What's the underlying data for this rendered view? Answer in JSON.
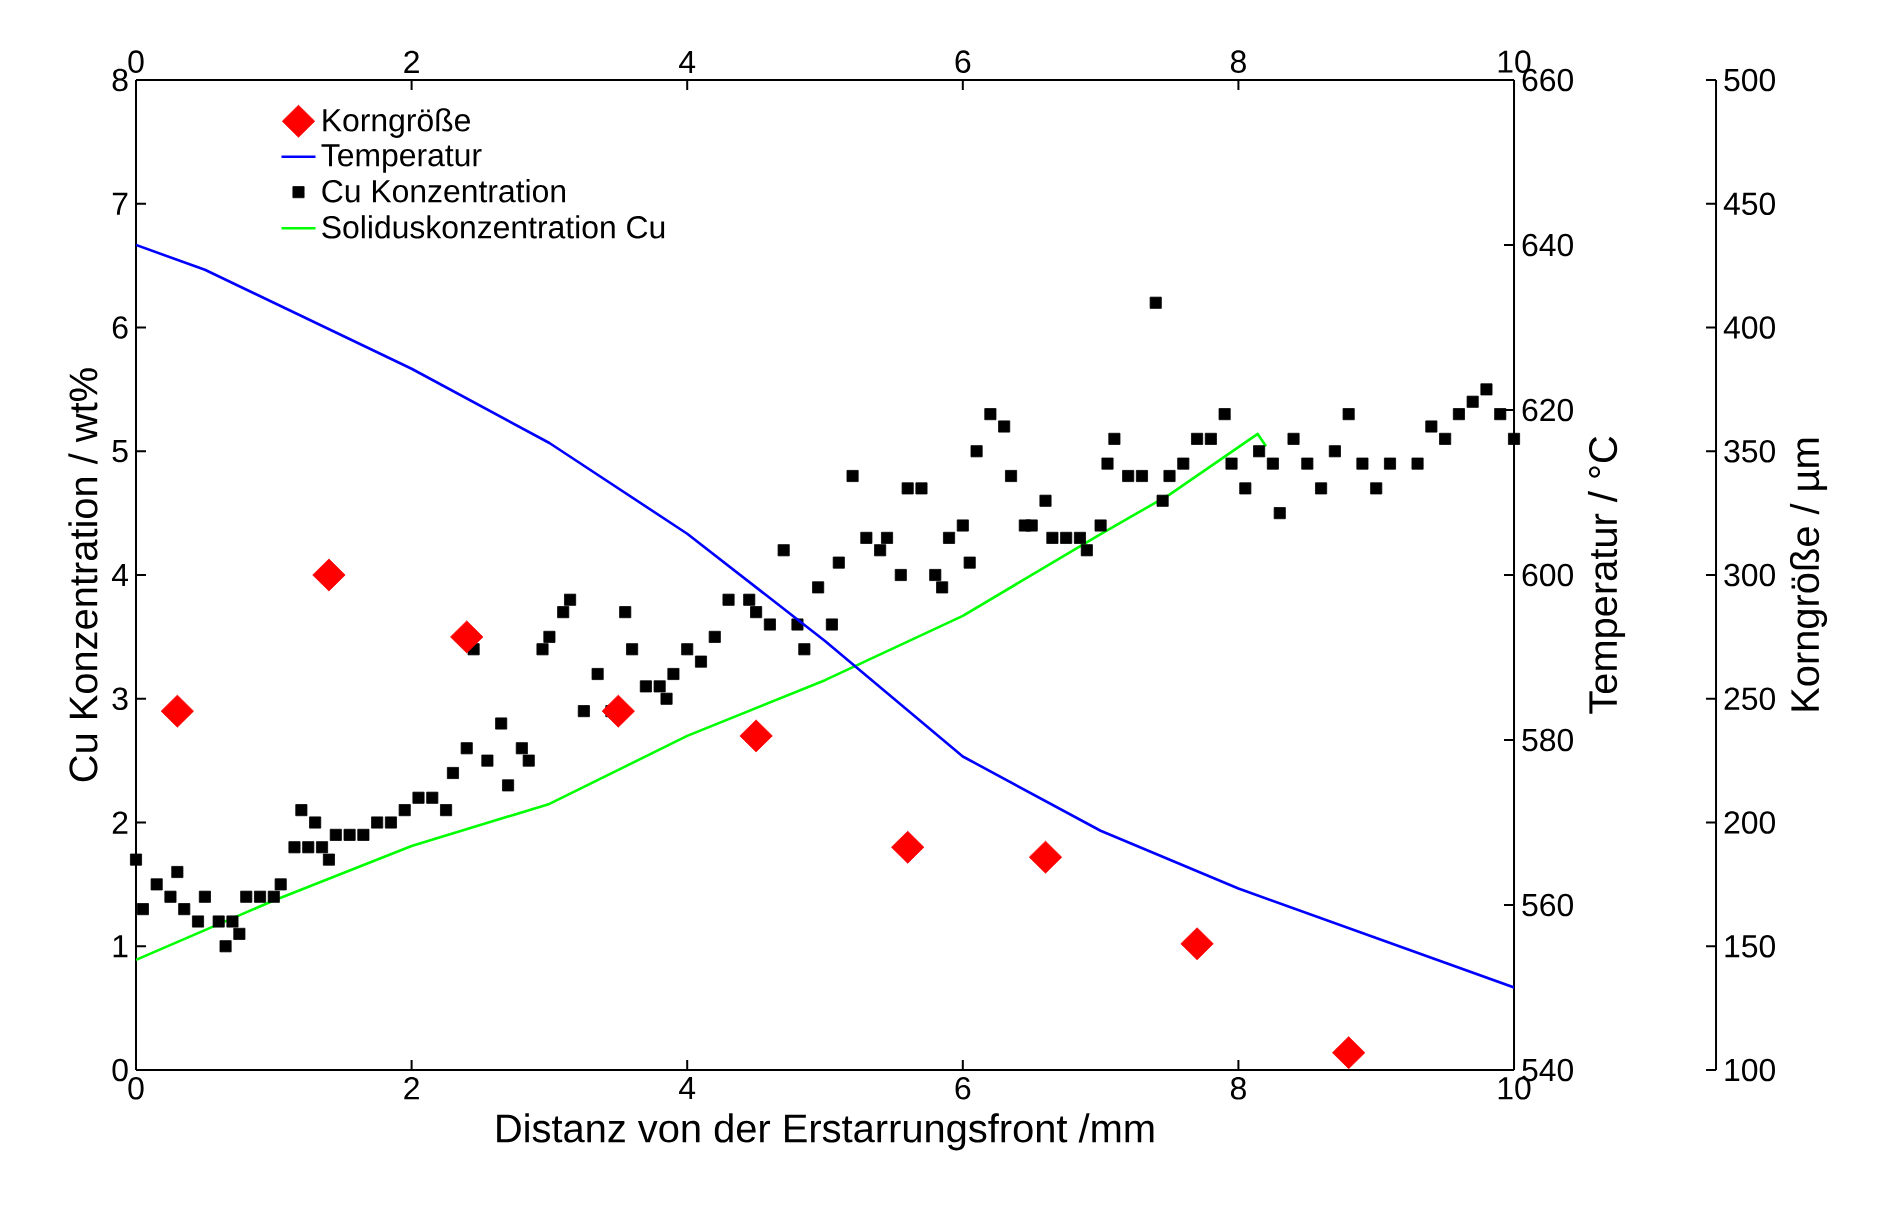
{
  "chart_data": {
    "type": "scatter",
    "xlabel": "Distanz von der Erstarrungsfront /mm",
    "ylabel": "Cu Konzentration / wt%",
    "y2label": "Temperatur / °C",
    "y3label": "Korngröße / µm",
    "xlim": [
      0,
      10
    ],
    "xticks": [
      0,
      2,
      4,
      6,
      8,
      10
    ],
    "x2lim": [
      0,
      10
    ],
    "x2ticks": [
      0,
      2,
      4,
      6,
      8,
      10
    ],
    "ylim": [
      0,
      8
    ],
    "yticks": [
      0,
      1,
      2,
      3,
      4,
      5,
      6,
      7,
      8
    ],
    "y2lim": [
      540,
      660
    ],
    "y2ticks": [
      540,
      560,
      580,
      600,
      620,
      640,
      660
    ],
    "y3lim": [
      100,
      500
    ],
    "y3ticks": [
      100,
      150,
      200,
      250,
      300,
      350,
      400,
      450,
      500
    ],
    "legend": "top left",
    "grid": false,
    "series": [
      {
        "name": "Korngröße",
        "marker": "diamond",
        "axis": "y3",
        "color": "#ff0000",
        "x": [
          0.3,
          1.4,
          2.4,
          3.5,
          4.5,
          5.6,
          6.6,
          7.7,
          8.8
        ],
        "values": [
          245,
          300,
          275,
          245,
          235,
          190,
          186,
          151,
          107
        ]
      },
      {
        "name": "Temperatur",
        "type": "line",
        "marker": "none",
        "axis": "y2",
        "color": "#0000ff",
        "x": [
          0,
          0.5,
          1,
          2,
          3,
          4,
          5,
          6,
          7,
          8,
          9,
          10
        ],
        "values": [
          640,
          637,
          633,
          625,
          616,
          605,
          592,
          578,
          569,
          562,
          556,
          550
        ]
      },
      {
        "name": "Cu Konzentration",
        "marker": "square",
        "axis": "y",
        "color": "#000000",
        "x": [
          0.0,
          0.05,
          0.15,
          0.25,
          0.3,
          0.35,
          0.45,
          0.5,
          0.6,
          0.65,
          0.7,
          0.75,
          0.8,
          0.9,
          1.0,
          1.05,
          1.15,
          1.2,
          1.25,
          1.3,
          1.35,
          1.4,
          1.45,
          1.55,
          1.65,
          1.75,
          1.85,
          1.95,
          2.05,
          2.15,
          2.25,
          2.3,
          2.4,
          2.45,
          2.55,
          2.65,
          2.7,
          2.8,
          2.85,
          2.95,
          3.0,
          3.1,
          3.15,
          3.25,
          3.35,
          3.45,
          3.55,
          3.6,
          3.7,
          3.8,
          3.85,
          3.9,
          4.0,
          4.1,
          4.2,
          4.3,
          4.45,
          4.5,
          4.6,
          4.7,
          4.8,
          4.85,
          4.95,
          5.05,
          5.1,
          5.2,
          5.3,
          5.4,
          5.45,
          5.55,
          5.6,
          5.7,
          5.8,
          5.85,
          5.9,
          6.0,
          6.05,
          6.1,
          6.2,
          6.3,
          6.35,
          6.45,
          6.5,
          6.6,
          6.65,
          6.75,
          6.85,
          6.9,
          7.0,
          7.05,
          7.1,
          7.2,
          7.3,
          7.4,
          7.45,
          7.5,
          7.6,
          7.7,
          7.8,
          7.9,
          7.95,
          8.05,
          8.15,
          8.25,
          8.3,
          8.4,
          8.5,
          8.6,
          8.7,
          8.8,
          8.9,
          9.0,
          9.1,
          9.3,
          9.4,
          9.5,
          9.6,
          9.7,
          9.8,
          9.9,
          10.0
        ],
        "values": [
          1.7,
          1.3,
          1.5,
          1.4,
          1.6,
          1.3,
          1.2,
          1.4,
          1.2,
          1.0,
          1.2,
          1.1,
          1.4,
          1.4,
          1.4,
          1.5,
          1.8,
          2.1,
          1.8,
          2.0,
          1.8,
          1.7,
          1.9,
          1.9,
          1.9,
          2.0,
          2.0,
          2.1,
          2.2,
          2.2,
          2.1,
          2.4,
          2.6,
          3.4,
          2.5,
          2.8,
          2.3,
          2.6,
          2.5,
          3.4,
          3.5,
          3.7,
          3.8,
          2.9,
          3.2,
          2.9,
          3.7,
          3.4,
          3.1,
          3.1,
          3.0,
          3.2,
          3.4,
          3.3,
          3.5,
          3.8,
          3.8,
          3.7,
          3.6,
          4.2,
          3.6,
          3.4,
          3.9,
          3.6,
          4.1,
          4.8,
          4.3,
          4.2,
          4.3,
          4.0,
          4.7,
          4.7,
          4.0,
          3.9,
          4.3,
          4.4,
          4.1,
          5.0,
          5.3,
          5.2,
          4.8,
          4.4,
          4.4,
          4.6,
          4.3,
          4.3,
          4.3,
          4.2,
          4.4,
          4.9,
          5.1,
          4.8,
          4.8,
          6.2,
          4.6,
          4.8,
          4.9,
          5.1,
          5.1,
          5.3,
          4.9,
          4.7,
          5.0,
          4.9,
          4.5,
          5.1,
          4.9,
          4.7,
          5.0,
          5.3,
          4.9,
          4.7,
          4.9,
          4.9,
          5.2,
          5.1,
          5.3,
          5.4,
          5.5,
          5.3,
          5.1
        ]
      },
      {
        "name": "Soliduskonzentration Cu",
        "type": "line",
        "marker": "none",
        "axis": "y",
        "color": "#00ff00",
        "x": [
          0,
          0.5,
          1,
          2,
          3,
          4,
          5,
          6,
          7,
          7.5,
          8.14,
          8.2
        ],
        "values": [
          0.89,
          1.13,
          1.37,
          1.81,
          2.15,
          2.7,
          3.15,
          3.67,
          4.33,
          4.65,
          5.14,
          5.04
        ]
      }
    ]
  }
}
